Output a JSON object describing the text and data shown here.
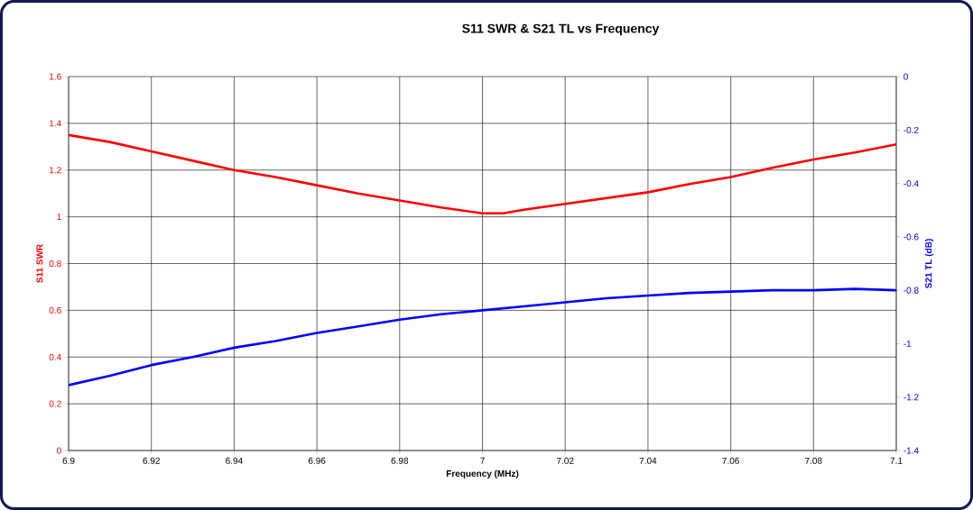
{
  "chart_data": {
    "type": "line",
    "title": "S11 SWR  &  S21 TL    vs    Frequency",
    "xlabel": "Frequency (MHz)",
    "ylabel": "S11 SWR",
    "y2label": "S21 TL (dB)",
    "series": [
      {
        "color": "#ff0000",
        "x": [
          6.9,
          6.91,
          6.92,
          6.93,
          6.94,
          6.95,
          6.96,
          6.97,
          6.98,
          6.99,
          7.0,
          7.005,
          7.01,
          7.02,
          7.03,
          7.04,
          7.05,
          7.06,
          7.07,
          7.08,
          7.09,
          7.1
        ],
        "values": [
          1.35,
          1.32,
          1.28,
          1.24,
          1.2,
          1.17,
          1.135,
          1.1,
          1.07,
          1.04,
          1.015,
          1.015,
          1.03,
          1.055,
          1.08,
          1.105,
          1.14,
          1.17,
          1.21,
          1.245,
          1.275,
          1.31
        ]
      },
      {
        "color": "#0000ff",
        "axis": "y2",
        "x": [
          6.9,
          6.91,
          6.92,
          6.93,
          6.94,
          6.95,
          6.96,
          6.97,
          6.98,
          6.99,
          7.0,
          7.01,
          7.02,
          7.03,
          7.04,
          7.05,
          7.06,
          7.07,
          7.08,
          7.09,
          7.1
        ],
        "values": [
          -1.155,
          -1.12,
          -1.08,
          -1.05,
          -1.015,
          -0.99,
          -0.96,
          -0.935,
          -0.91,
          -0.89,
          -0.875,
          -0.86,
          -0.845,
          -0.83,
          -0.82,
          -0.81,
          -0.805,
          -0.8,
          -0.8,
          -0.795,
          -0.8
        ]
      }
    ],
    "xlim": [
      6.9,
      7.1
    ],
    "xticks": [
      6.9,
      6.92,
      6.94,
      6.96,
      6.98,
      7,
      7.02,
      7.04,
      7.06,
      7.08,
      7.1
    ],
    "ylim": [
      0,
      1.6
    ],
    "yticks": [
      0,
      0.2,
      0.4,
      0.6,
      0.8,
      1,
      1.2,
      1.4,
      1.6
    ],
    "y2lim": [
      -1.4,
      0
    ],
    "y2ticks": [
      -1.4,
      -1.2,
      -1,
      -0.8,
      -0.6,
      -0.4,
      -0.2,
      0
    ],
    "grid": true,
    "marker": "none",
    "line_style": "solid"
  }
}
